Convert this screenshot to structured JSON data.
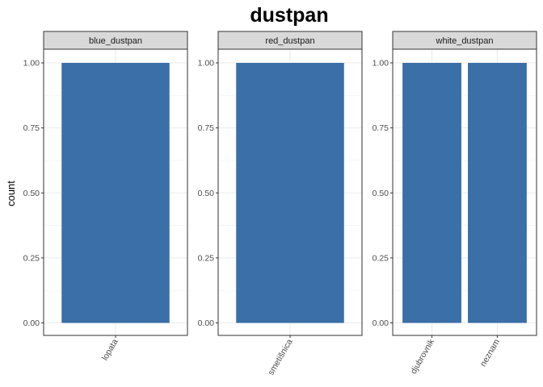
{
  "chart_data": {
    "type": "bar",
    "title": "dustpan",
    "ylabel": "count",
    "xlabel": "",
    "ylim": [
      0,
      1.05
    ],
    "yticks": [
      "0.00",
      "0.25",
      "0.50",
      "0.75",
      "1.00"
    ],
    "grid": true,
    "bar_color": "#3A6FA7",
    "panels": [
      {
        "strip": "blue_dustpan",
        "categories": [
          "lopata"
        ],
        "values": [
          1
        ]
      },
      {
        "strip": "red_dustpan",
        "categories": [
          "smetišnica"
        ],
        "values": [
          1
        ]
      },
      {
        "strip": "white_dustpan",
        "categories": [
          "djubrovnik",
          "neznam"
        ],
        "values": [
          1,
          1
        ]
      }
    ]
  }
}
